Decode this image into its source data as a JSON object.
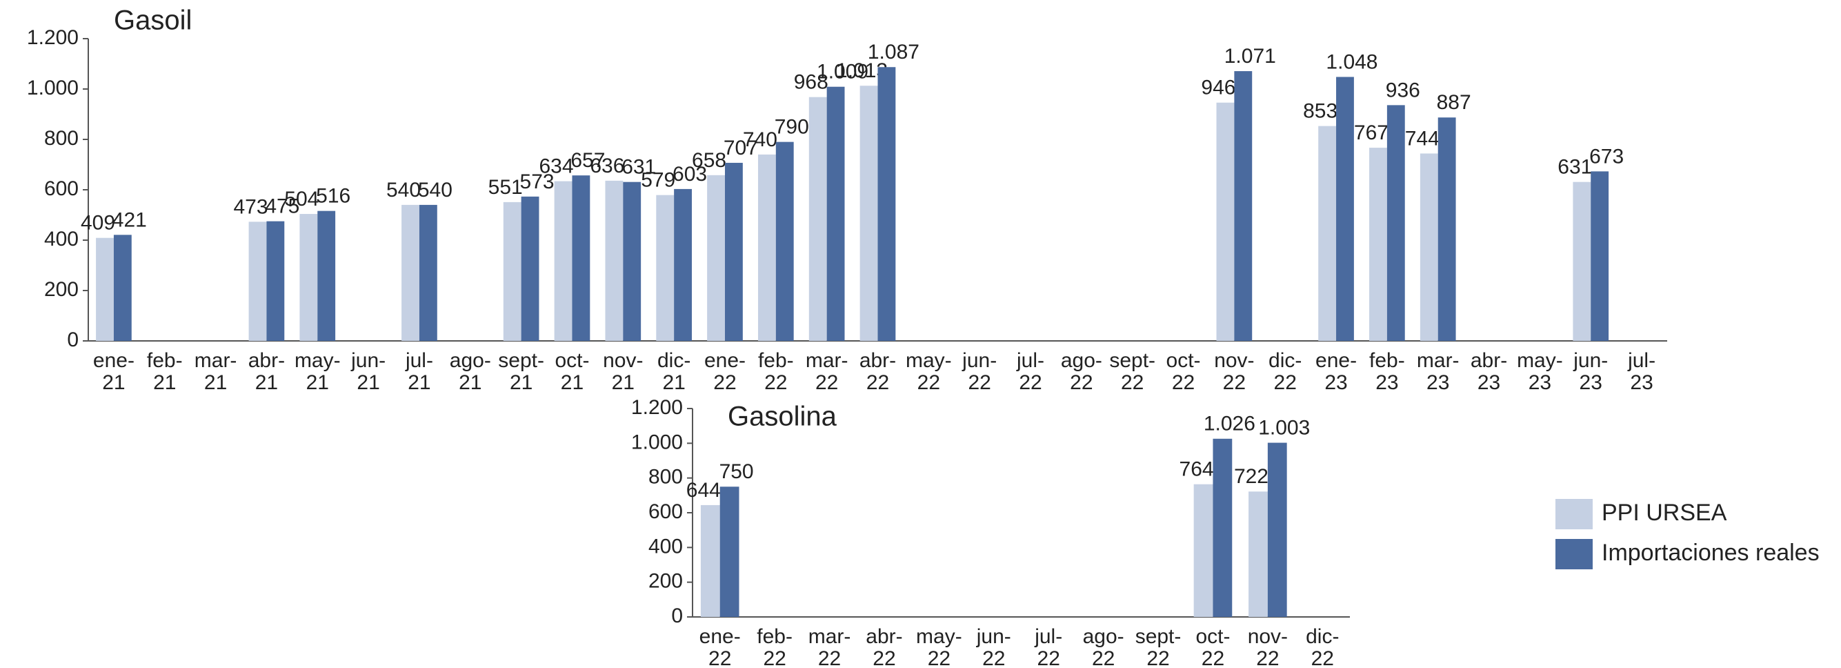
{
  "chart_data": [
    {
      "type": "bar",
      "title": "Gasoil",
      "categories": [
        "ene-21",
        "feb-21",
        "mar-21",
        "abr-21",
        "may-21",
        "jun-21",
        "jul-21",
        "ago-21",
        "sept-21",
        "oct-21",
        "nov-21",
        "dic-21",
        "ene-22",
        "feb-22",
        "mar-22",
        "abr-22",
        "may-22",
        "jun-22",
        "jul-22",
        "ago-22",
        "sept-22",
        "oct-22",
        "nov-22",
        "dic-22",
        "ene-23",
        "feb-23",
        "mar-23",
        "abr-23",
        "may-23",
        "jun-23",
        "jul-23"
      ],
      "series": [
        {
          "name": "PPI URSEA",
          "color": "#c5d0e3",
          "values": [
            409,
            null,
            null,
            473,
            504,
            null,
            540,
            null,
            551,
            634,
            636,
            579,
            658,
            740,
            968,
            1013,
            null,
            null,
            null,
            null,
            null,
            null,
            946,
            null,
            853,
            767,
            744,
            null,
            null,
            631,
            null
          ],
          "value_labels": [
            "409",
            null,
            null,
            "473",
            "504",
            null,
            "540",
            null,
            "551",
            "634",
            "636",
            "579",
            "658",
            "740",
            "968",
            "1.013",
            null,
            null,
            null,
            null,
            null,
            null,
            "946",
            null,
            "853",
            "767",
            "744",
            null,
            null,
            "631",
            null
          ]
        },
        {
          "name": "Importaciones reales",
          "color": "#4a6a9e",
          "values": [
            421,
            null,
            null,
            475,
            516,
            null,
            540,
            null,
            573,
            657,
            631,
            603,
            707,
            790,
            1009,
            1087,
            null,
            null,
            null,
            null,
            null,
            null,
            1071,
            null,
            1048,
            936,
            887,
            null,
            null,
            673,
            null
          ],
          "value_labels": [
            "421",
            null,
            null,
            "475",
            "516",
            null,
            "540",
            null,
            "573",
            "657",
            "631",
            "603",
            "707",
            "790",
            "1.009",
            "1.087",
            null,
            null,
            null,
            null,
            null,
            null,
            "1.071",
            null,
            "1.048",
            "936",
            "887",
            null,
            null,
            "673",
            null
          ]
        }
      ],
      "ylim": [
        0,
        1200
      ],
      "yticks": [
        0,
        200,
        400,
        600,
        800,
        {
          "value": 1000,
          "label": "1.000"
        },
        {
          "value": 1200,
          "label": "1.200"
        }
      ]
    },
    {
      "type": "bar",
      "title": "Gasolina",
      "categories": [
        "ene-22",
        "feb-22",
        "mar-22",
        "abr-22",
        "may-22",
        "jun-22",
        "jul-22",
        "ago-22",
        "sept-22",
        "oct-22",
        "nov-22",
        "dic-22"
      ],
      "series": [
        {
          "name": "PPI URSEA",
          "color": "#c5d0e3",
          "values": [
            644,
            null,
            null,
            null,
            null,
            null,
            null,
            null,
            null,
            764,
            722,
            null
          ]
        },
        {
          "name": "Importaciones reales",
          "color": "#4a6a9e",
          "values": [
            750,
            null,
            null,
            null,
            null,
            null,
            null,
            null,
            null,
            1026,
            1003,
            null
          ],
          "value_labels": [
            "750",
            null,
            null,
            null,
            null,
            null,
            null,
            null,
            null,
            "1.026",
            "1.003",
            null
          ]
        }
      ],
      "ylim": [
        0,
        1200
      ],
      "yticks": [
        0,
        200,
        400,
        600,
        800,
        {
          "value": 1000,
          "label": "1.000"
        },
        {
          "value": 1200,
          "label": "1.200"
        }
      ],
      "legend": "right"
    }
  ]
}
